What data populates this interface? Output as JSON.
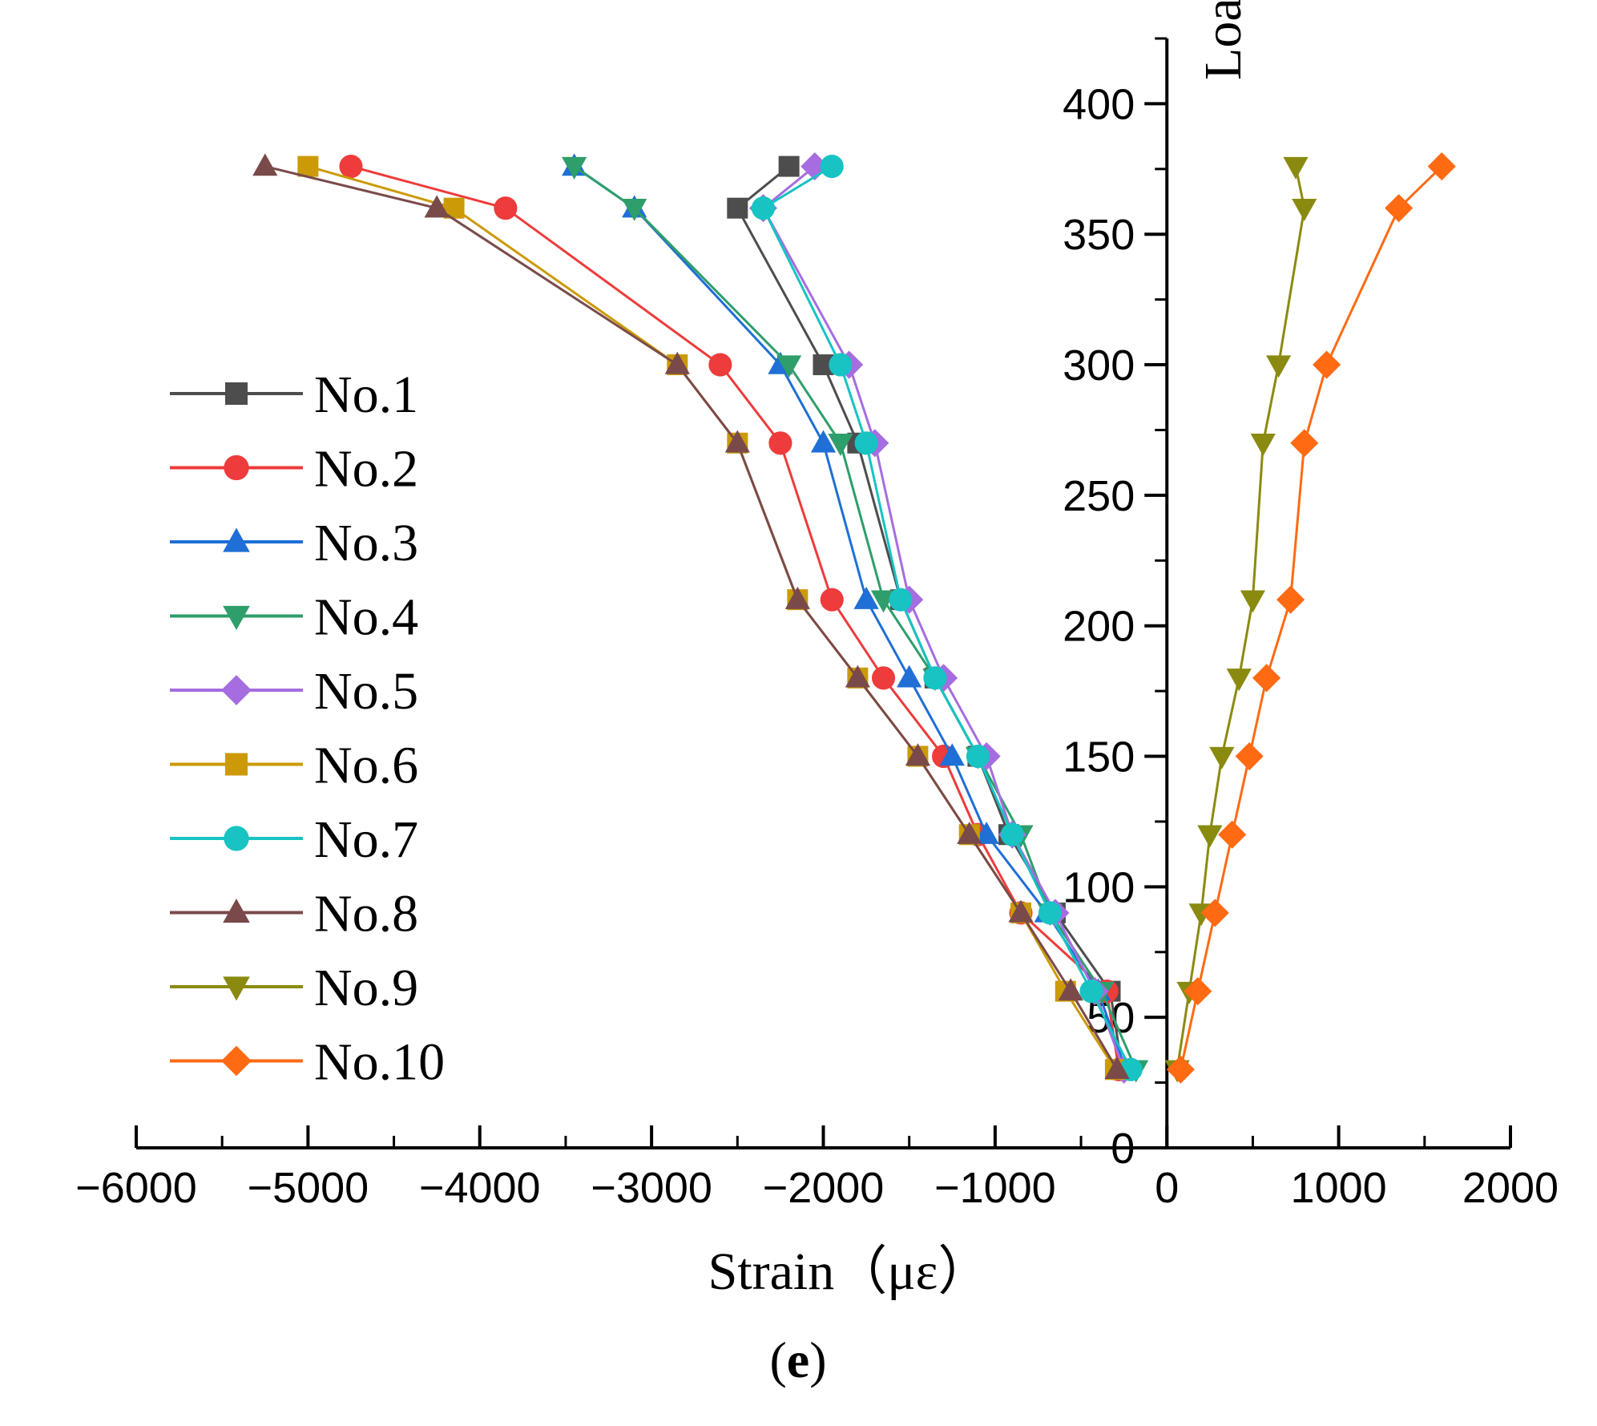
{
  "chart_data": {
    "type": "line",
    "title": "",
    "xlabel": "Strain（με）",
    "ylabel": "Load（kN）",
    "xlim": [
      -6000,
      2000
    ],
    "ylim": [
      0,
      425
    ],
    "xticks": [
      -6000,
      -5000,
      -4000,
      -3000,
      -2000,
      -1000,
      0,
      1000,
      2000
    ],
    "xtick_labels": [
      "−6000",
      "−5000",
      "−4000",
      "−3000",
      "−2000",
      "−1000",
      "0",
      "1000",
      "2000"
    ],
    "yticks": [
      0,
      50,
      100,
      150,
      200,
      250,
      300,
      350,
      400
    ],
    "ytick_labels": [
      "0",
      "50",
      "100",
      "150",
      "200",
      "250",
      "300",
      "350",
      "400"
    ],
    "caption": {
      "open": "(",
      "letter": "e",
      "close": ")"
    },
    "legend_position": "left-middle",
    "series": [
      {
        "name": "No.1",
        "color": "#4d4d4d",
        "marker": "square",
        "points": [
          [
            -260,
            30
          ],
          [
            -330,
            60
          ],
          [
            -650,
            90
          ],
          [
            -920,
            120
          ],
          [
            -1100,
            150
          ],
          [
            -1350,
            180
          ],
          [
            -1550,
            210
          ],
          [
            -1800,
            270
          ],
          [
            -2000,
            300
          ],
          [
            -2500,
            360
          ],
          [
            -2200,
            376
          ]
        ]
      },
      {
        "name": "No.2",
        "color": "#ee3b3b",
        "marker": "circle",
        "points": [
          [
            -280,
            30
          ],
          [
            -350,
            60
          ],
          [
            -850,
            90
          ],
          [
            -1100,
            120
          ],
          [
            -1300,
            150
          ],
          [
            -1650,
            180
          ],
          [
            -1950,
            210
          ],
          [
            -2250,
            270
          ],
          [
            -2600,
            300
          ],
          [
            -3850,
            360
          ],
          [
            -4750,
            376
          ]
        ]
      },
      {
        "name": "No.3",
        "color": "#1f6fd6",
        "marker": "triangle-up",
        "points": [
          [
            -240,
            30
          ],
          [
            -400,
            60
          ],
          [
            -700,
            90
          ],
          [
            -1050,
            120
          ],
          [
            -1250,
            150
          ],
          [
            -1500,
            180
          ],
          [
            -1750,
            210
          ],
          [
            -2000,
            270
          ],
          [
            -2250,
            300
          ],
          [
            -3100,
            360
          ],
          [
            -3450,
            376
          ]
        ]
      },
      {
        "name": "No.4",
        "color": "#2e9e6a",
        "marker": "triangle-down",
        "points": [
          [
            -180,
            30
          ],
          [
            -380,
            60
          ],
          [
            -680,
            90
          ],
          [
            -850,
            120
          ],
          [
            -1100,
            150
          ],
          [
            -1350,
            180
          ],
          [
            -1650,
            210
          ],
          [
            -1900,
            270
          ],
          [
            -2200,
            300
          ],
          [
            -3100,
            360
          ],
          [
            -3450,
            376
          ]
        ]
      },
      {
        "name": "No.5",
        "color": "#a66de0",
        "marker": "diamond",
        "points": [
          [
            -250,
            30
          ],
          [
            -420,
            60
          ],
          [
            -650,
            90
          ],
          [
            -900,
            120
          ],
          [
            -1050,
            150
          ],
          [
            -1300,
            180
          ],
          [
            -1500,
            210
          ],
          [
            -1700,
            270
          ],
          [
            -1850,
            300
          ],
          [
            -2350,
            360
          ],
          [
            -2050,
            376
          ]
        ]
      },
      {
        "name": "No.6",
        "color": "#cc9a06",
        "marker": "square",
        "points": [
          [
            -300,
            30
          ],
          [
            -590,
            60
          ],
          [
            -850,
            90
          ],
          [
            -1150,
            120
          ],
          [
            -1450,
            150
          ],
          [
            -1800,
            180
          ],
          [
            -2150,
            210
          ],
          [
            -2500,
            270
          ],
          [
            -2850,
            300
          ],
          [
            -4150,
            360
          ],
          [
            -5000,
            376
          ]
        ]
      },
      {
        "name": "No.7",
        "color": "#17c3c3",
        "marker": "circle",
        "points": [
          [
            -210,
            30
          ],
          [
            -440,
            60
          ],
          [
            -680,
            90
          ],
          [
            -900,
            120
          ],
          [
            -1100,
            150
          ],
          [
            -1350,
            180
          ],
          [
            -1550,
            210
          ],
          [
            -1750,
            270
          ],
          [
            -1900,
            300
          ],
          [
            -2350,
            360
          ],
          [
            -1950,
            376
          ]
        ]
      },
      {
        "name": "No.8",
        "color": "#7a4a4a",
        "marker": "triangle-up",
        "points": [
          [
            -290,
            30
          ],
          [
            -560,
            60
          ],
          [
            -850,
            90
          ],
          [
            -1150,
            120
          ],
          [
            -1450,
            150
          ],
          [
            -1800,
            180
          ],
          [
            -2150,
            210
          ],
          [
            -2500,
            270
          ],
          [
            -2850,
            300
          ],
          [
            -4250,
            360
          ],
          [
            -5250,
            376
          ]
        ]
      },
      {
        "name": "No.9",
        "color": "#8a8a10",
        "marker": "triangle-down",
        "points": [
          [
            60,
            30
          ],
          [
            130,
            60
          ],
          [
            200,
            90
          ],
          [
            250,
            120
          ],
          [
            320,
            150
          ],
          [
            420,
            180
          ],
          [
            500,
            210
          ],
          [
            560,
            270
          ],
          [
            650,
            300
          ],
          [
            800,
            360
          ],
          [
            750,
            376
          ]
        ]
      },
      {
        "name": "No.10",
        "color": "#ff6a13",
        "marker": "diamond",
        "points": [
          [
            80,
            30
          ],
          [
            180,
            60
          ],
          [
            280,
            90
          ],
          [
            380,
            120
          ],
          [
            480,
            150
          ],
          [
            580,
            180
          ],
          [
            720,
            210
          ],
          [
            800,
            270
          ],
          [
            930,
            300
          ],
          [
            1350,
            360
          ],
          [
            1600,
            376
          ]
        ]
      }
    ]
  }
}
